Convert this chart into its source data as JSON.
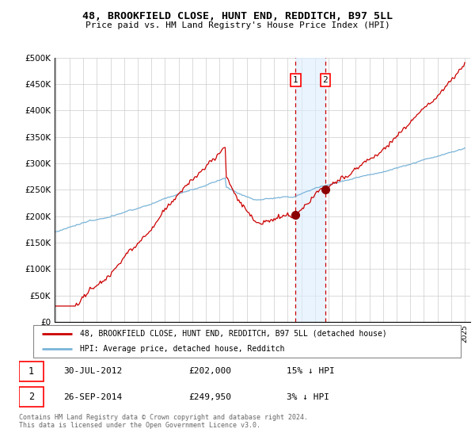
{
  "title": "48, BROOKFIELD CLOSE, HUNT END, REDDITCH, B97 5LL",
  "subtitle": "Price paid vs. HM Land Registry's House Price Index (HPI)",
  "legend_line1": "48, BROOKFIELD CLOSE, HUNT END, REDDITCH, B97 5LL (detached house)",
  "legend_line2": "HPI: Average price, detached house, Redditch",
  "transaction1_date": "30-JUL-2012",
  "transaction1_price": 202000,
  "transaction1_label": "15% ↓ HPI",
  "transaction2_date": "26-SEP-2014",
  "transaction2_price": 249950,
  "transaction2_label": "3% ↓ HPI",
  "footnote": "Contains HM Land Registry data © Crown copyright and database right 2024.\nThis data is licensed under the Open Government Licence v3.0.",
  "year_start": 1995,
  "year_end": 2025,
  "ylim_min": 0,
  "ylim_max": 500000,
  "hpi_color": "#7ab4d8",
  "price_color": "#cc0000",
  "dot_color": "#8b0000",
  "shade_color": "#ddeeff",
  "vline_color": "#cc0000",
  "grid_color": "#cccccc",
  "bg_color": "#ffffff"
}
